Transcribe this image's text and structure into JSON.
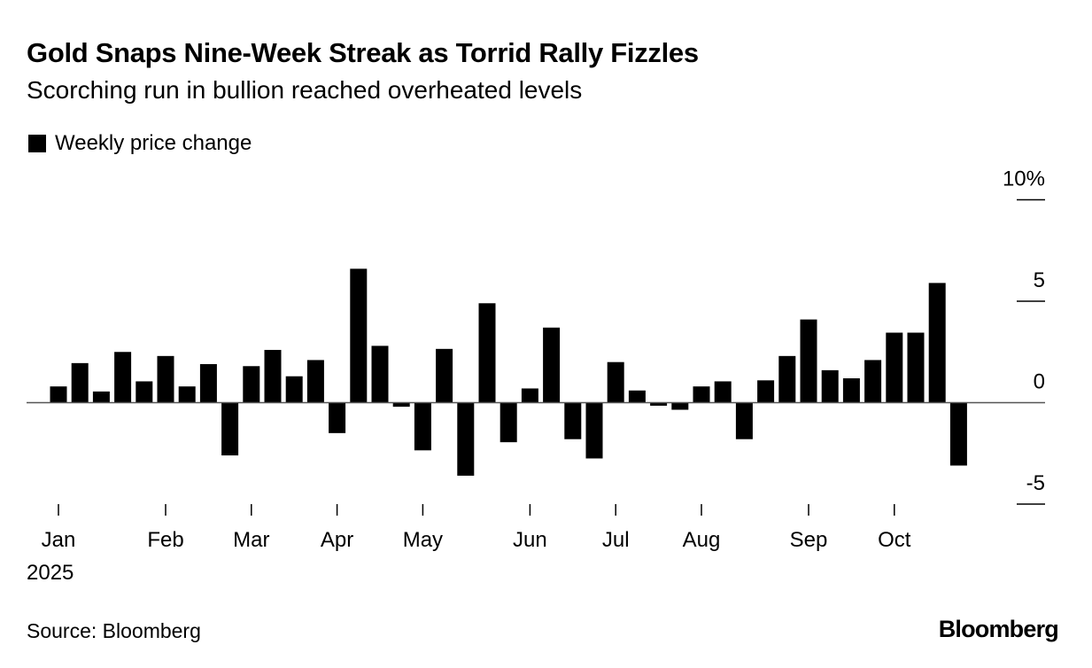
{
  "chart_data": {
    "type": "bar",
    "title": "Gold Snaps Nine-Week Streak as Torrid Rally Fizzles",
    "subtitle": "Scorching run in bullion reached overheated levels",
    "legend": [
      "Weekly price change"
    ],
    "legend_placement": "top-left",
    "xlabel": "",
    "ylabel": "",
    "ylim": [
      -5,
      10
    ],
    "yticks": [
      {
        "value": 10,
        "label": "10%"
      },
      {
        "value": 5,
        "label": "5"
      },
      {
        "value": 0,
        "label": "0"
      },
      {
        "value": -5,
        "label": "-5"
      }
    ],
    "xticks": [
      {
        "week": 0,
        "label": "Jan"
      },
      {
        "week": 5,
        "label": "Feb"
      },
      {
        "week": 9,
        "label": "Mar"
      },
      {
        "week": 13,
        "label": "Apr"
      },
      {
        "week": 17,
        "label": "May"
      },
      {
        "week": 22,
        "label": "Jun"
      },
      {
        "week": 26,
        "label": "Jul"
      },
      {
        "week": 30,
        "label": "Aug"
      },
      {
        "week": 35,
        "label": "Sep"
      },
      {
        "week": 39,
        "label": "Oct"
      }
    ],
    "year_label": "2025",
    "series": [
      {
        "name": "Weekly price change",
        "color": "#000000",
        "values": [
          0.8,
          1.95,
          0.55,
          2.5,
          1.05,
          2.3,
          0.8,
          1.9,
          -2.6,
          1.8,
          2.6,
          1.3,
          2.1,
          -1.5,
          6.6,
          2.8,
          -0.2,
          -2.35,
          2.65,
          -3.6,
          4.9,
          -1.95,
          0.7,
          3.7,
          -1.8,
          -2.75,
          2.0,
          0.6,
          -0.15,
          -0.35,
          0.8,
          1.05,
          -1.8,
          1.1,
          2.3,
          4.1,
          1.6,
          1.2,
          2.1,
          3.45,
          3.45,
          5.9,
          -3.1
        ]
      }
    ],
    "grid": false
  },
  "footer": {
    "source": "Source: Bloomberg",
    "logo": "Bloomberg"
  }
}
